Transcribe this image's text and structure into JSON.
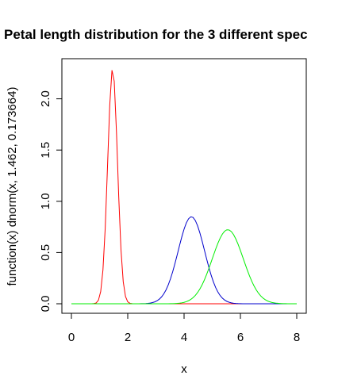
{
  "chart_data": {
    "type": "line",
    "title": "Petal length distribution for the 3 different spec",
    "xlabel": "x",
    "ylabel": "function(x) dnorm(x, 1.462, 0.173664)",
    "xlim": [
      0,
      8
    ],
    "ylim": [
      0,
      2.3
    ],
    "xticks": [
      "0",
      "2",
      "4",
      "6",
      "8"
    ],
    "yticks": [
      "0.0",
      "0.5",
      "1.0",
      "1.5",
      "2.0"
    ],
    "grid": false,
    "legend": "none",
    "series": [
      {
        "color": "#ff0000",
        "mean": 1.462,
        "sd": 0.173664
      },
      {
        "color": "#0000cc",
        "mean": 4.26,
        "sd": 0.469911
      },
      {
        "color": "#00ee00",
        "mean": 5.552,
        "sd": 0.551895
      }
    ]
  }
}
